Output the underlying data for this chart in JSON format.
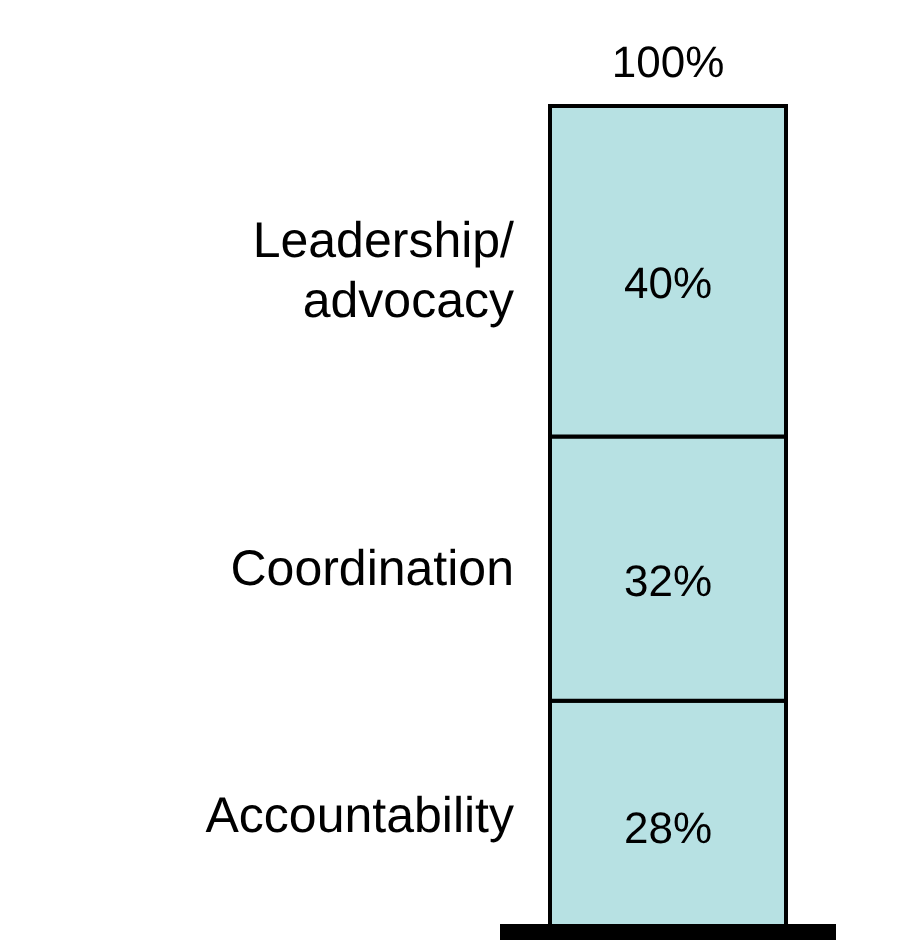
{
  "chart_data": {
    "type": "bar",
    "stacked": true,
    "categories": [
      null
    ],
    "series": [
      {
        "name": "Accountability",
        "color": "#b7e1e3",
        "values": [
          28
        ],
        "value_labels": [
          "28%"
        ]
      },
      {
        "name": "Coordination",
        "color": "#b7e1e3",
        "values": [
          32
        ],
        "value_labels": [
          "32%"
        ]
      },
      {
        "name": "Leadership/ advocacy",
        "color": "#b7e1e3",
        "values": [
          40
        ],
        "value_labels": [
          "40%"
        ]
      }
    ],
    "totals": [
      "100%"
    ]
  }
}
